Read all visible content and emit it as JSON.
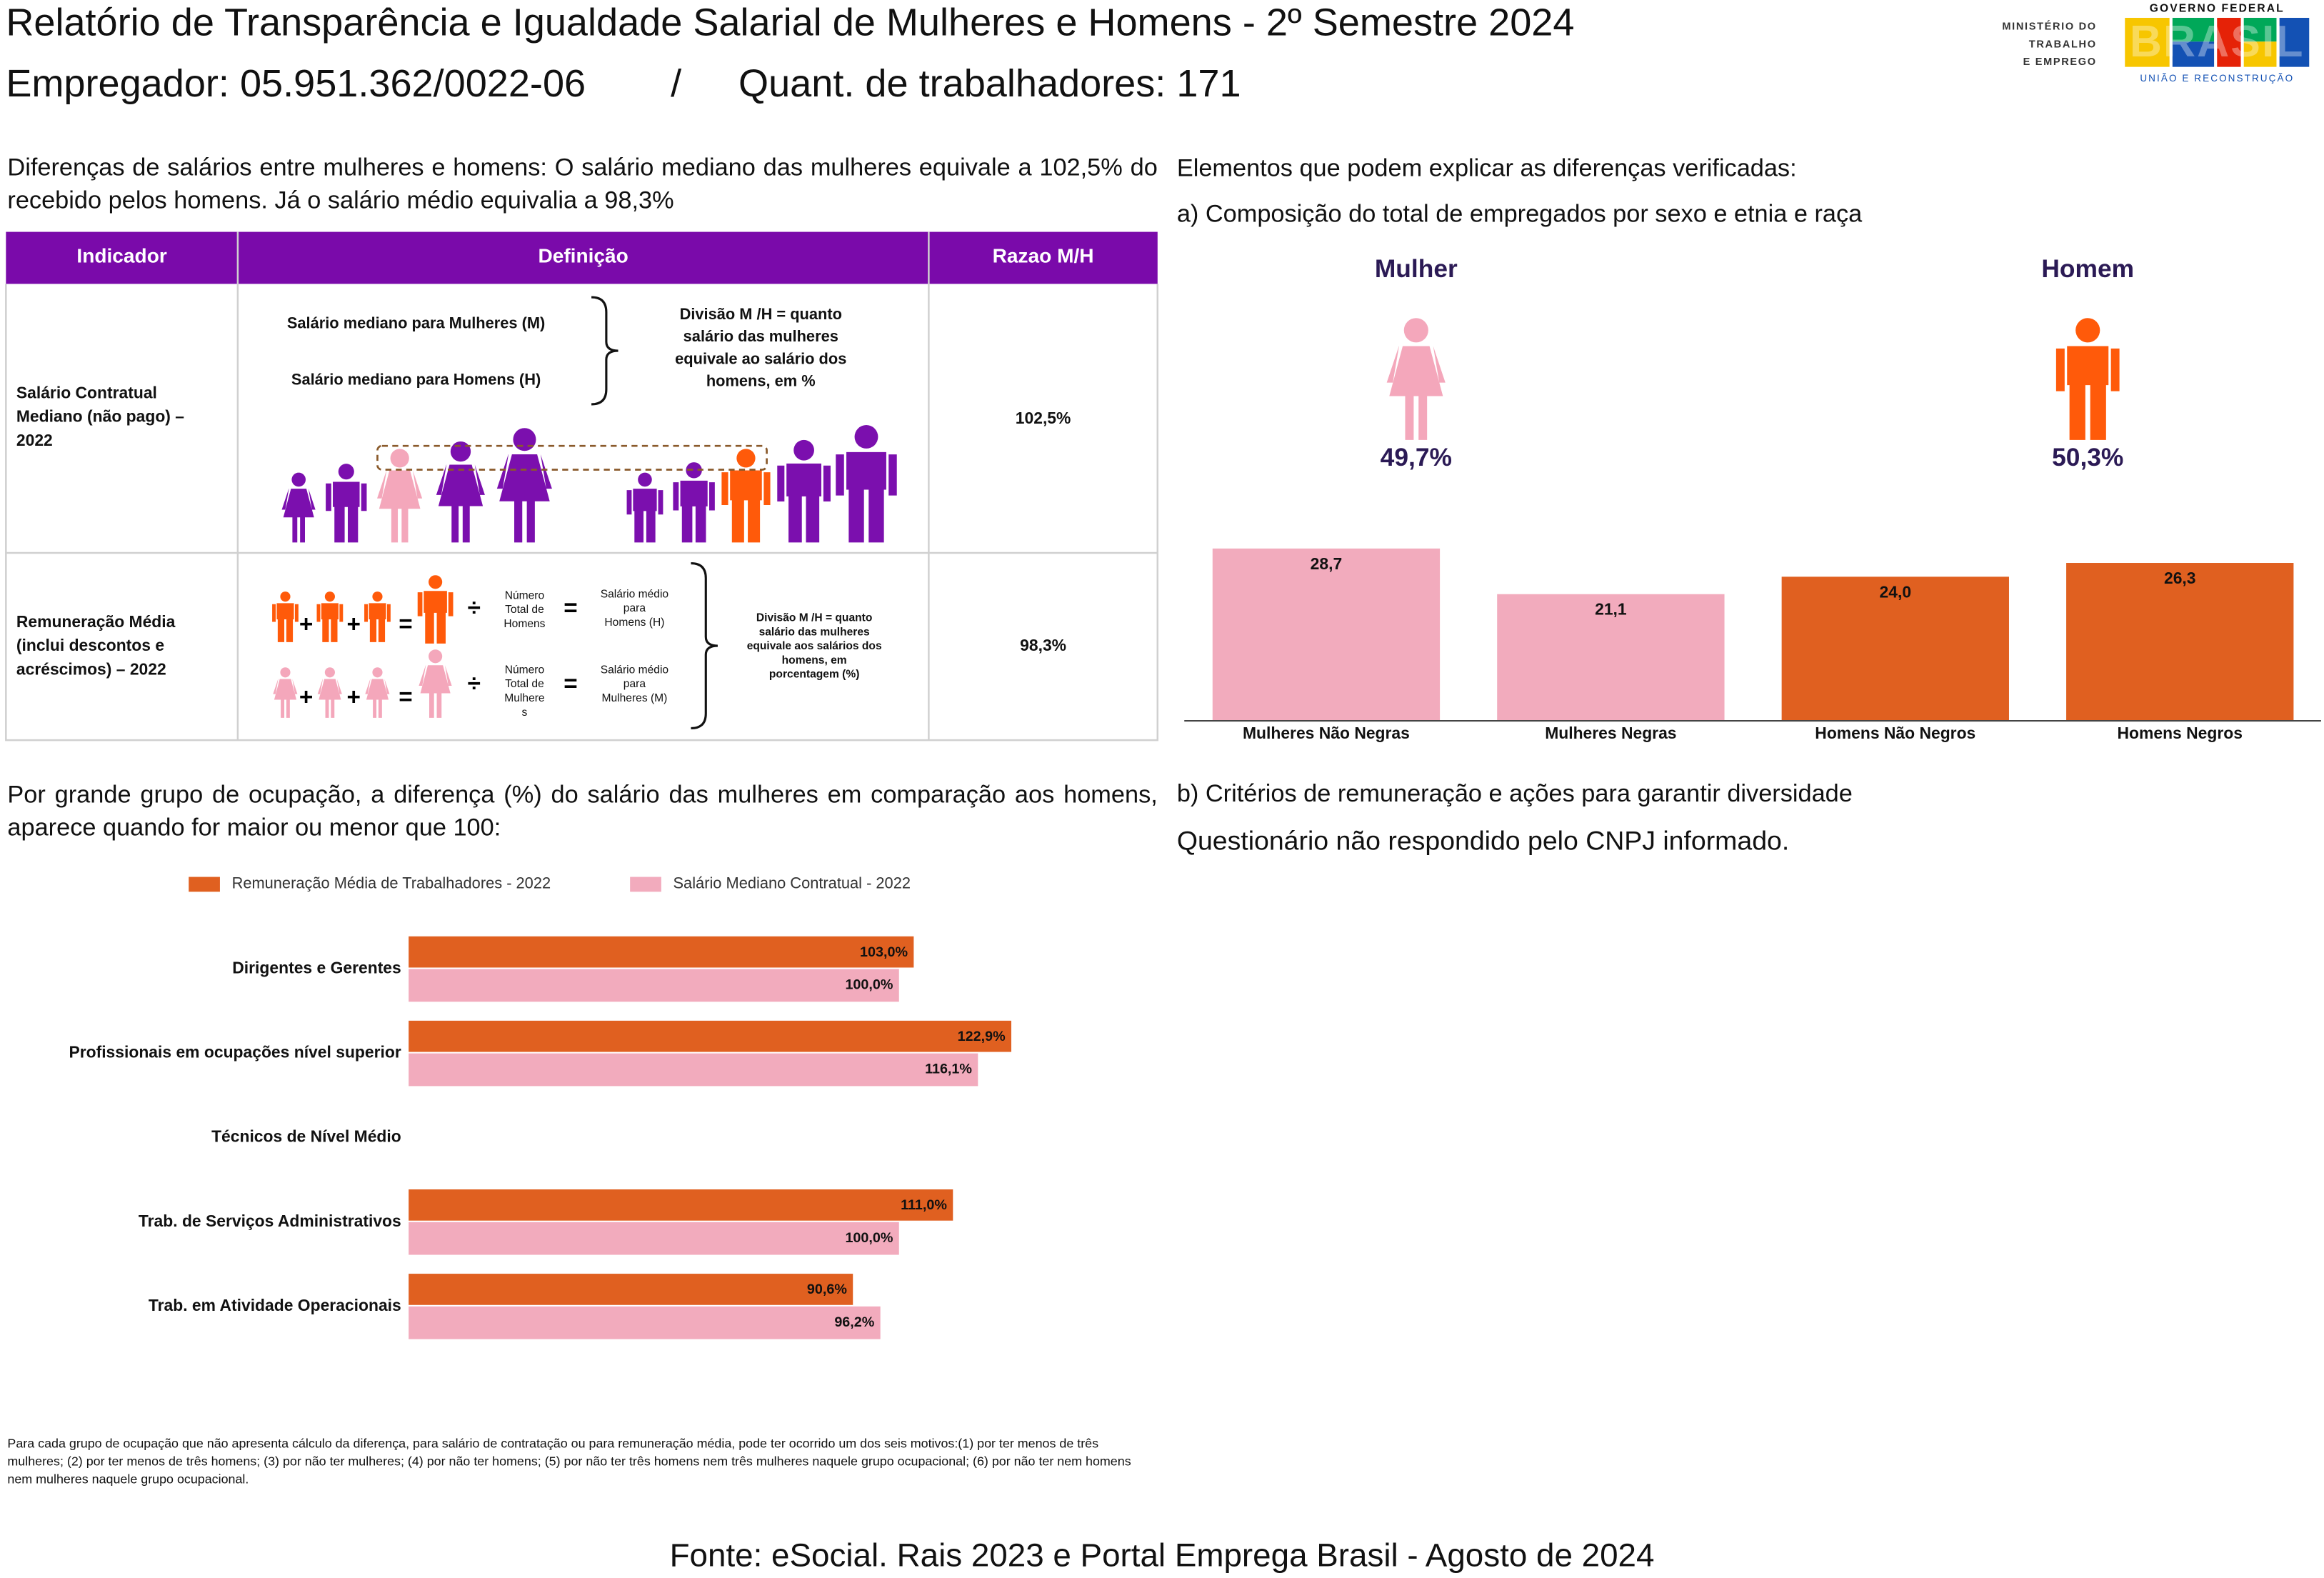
{
  "header": {
    "title": "Relatório de Transparência e Igualdade Salarial de Mulheres e Homens - 2º Semestre 2024",
    "employer": "Empregador: 05.951.362/0022-06",
    "separator": "/",
    "workers": "Quant. de trabalhadores: 171"
  },
  "logo": {
    "ministry": [
      "MINISTÉRIO DO",
      "TRABALHO",
      "E EMPREGO"
    ],
    "government": "GOVERNO FEDERAL",
    "brand": "BRASIL",
    "slogan": "UNIÃO E RECONSTRUÇÃO"
  },
  "summary": "Diferenças de salários entre mulheres e homens: O salário mediano das mulheres equivale a 102,5% do recebido pelos homens. Já o salário médio equivalia a 98,3%",
  "table": {
    "headers": [
      "Indicador",
      "Definição",
      "Razao M/H"
    ],
    "rows": [
      {
        "indicator": [
          "Salário Contratual",
          "Mediano (não pago) –",
          "2022"
        ],
        "ratio": "102,5%",
        "definition": {
          "women": "Salário mediano para Mulheres (M)",
          "men": "Salário mediano para Homens (H)",
          "division": [
            "Divisão M /H = quanto",
            "salário das mulheres",
            "equivale ao salário dos",
            "homens, em %"
          ]
        }
      },
      {
        "indicator": [
          "Remuneração Média",
          "(inclui descontos e",
          "acréscimos) – 2022"
        ],
        "ratio": "98,3%",
        "definition": {
          "men_total": [
            "Número",
            "Total de",
            "Homens"
          ],
          "men_salary": [
            "Salário médio",
            "para",
            "Homens (H)"
          ],
          "women_total": [
            "Número",
            "Total de",
            "Mulhere",
            "s"
          ],
          "women_salary": [
            "Salário médio",
            "para",
            "Mulheres (M)"
          ],
          "division": [
            "Divisão M /H = quanto",
            "salário das mulheres",
            "equivale aos salários dos",
            "homens, em",
            "porcentagem (%)"
          ]
        }
      }
    ]
  },
  "elements": {
    "heading": "Elementos que podem explicar as diferenças verificadas:",
    "composition_title": "a) Composição do total de empregados por sexo e etnia e raça",
    "shares": [
      {
        "label": "Mulher",
        "value": 49.7,
        "value_label": "49,7%",
        "color": "#f4a7bb"
      },
      {
        "label": "Homem",
        "value": 50.3,
        "value_label": "50,3%",
        "color": "#ff5a0a"
      }
    ]
  },
  "chart_data": [
    {
      "type": "bar",
      "categories": [
        "Mulheres Não Negras",
        "Mulheres Negras",
        "Homens Não Negros",
        "Homens Negros"
      ],
      "values": [
        28.7,
        21.1,
        24.0,
        26.3
      ],
      "value_labels": [
        "28,7",
        "21,1",
        "24,0",
        "26,3"
      ],
      "colors": [
        "#f2abbd",
        "#f2abbd",
        "#e06020",
        "#e06020"
      ]
    },
    {
      "type": "hbar",
      "legend": "top",
      "categories": [
        "Dirigentes e Gerentes",
        "Profissionais em ocupações nível superior",
        "Técnicos de Nível Médio",
        "Trab. de Serviços Administrativos",
        "Trab. em Atividade Operacionais"
      ],
      "series": [
        {
          "name": "Remuneração Média de Trabalhadores - 2022",
          "color": "#e06020",
          "values": [
            103.0,
            122.9,
            null,
            111.0,
            90.6
          ],
          "value_labels": [
            "103,0%",
            "122,9%",
            null,
            "111,0%",
            "90,6%"
          ]
        },
        {
          "name": "Salário Mediano Contratual - 2022",
          "color": "#f2abbd",
          "values": [
            100.0,
            116.1,
            null,
            100.0,
            96.2
          ],
          "value_labels": [
            "100,0%",
            "116,1%",
            null,
            "100,0%",
            "96,2%"
          ]
        }
      ]
    }
  ],
  "occupation_intro": "Por grande grupo de ocupação, a diferença (%) do salário das mulheres em comparação aos homens, aparece quando for maior ou menor que 100:",
  "criteria": {
    "title": "b) Critérios de remuneração e ações para garantir diversidade",
    "text": "Questionário não respondido pelo CNPJ informado."
  },
  "footnote": "Para cada grupo de ocupação que não apresenta cálculo da diferença, para salário de contratação ou para remuneração média, pode ter ocorrido um dos seis motivos:(1) por ter menos de três mulheres; (2) por ter menos de três homens; (3) por não ter mulheres; (4) por não ter homens; (5) por não ter três homens nem três mulheres naquele grupo ocupacional; (6) por não ter nem homens nem mulheres naquele grupo ocupacional.",
  "source": "Fonte: eSocial. Rais 2023 e Portal Emprega Brasil - Agosto de 2024"
}
